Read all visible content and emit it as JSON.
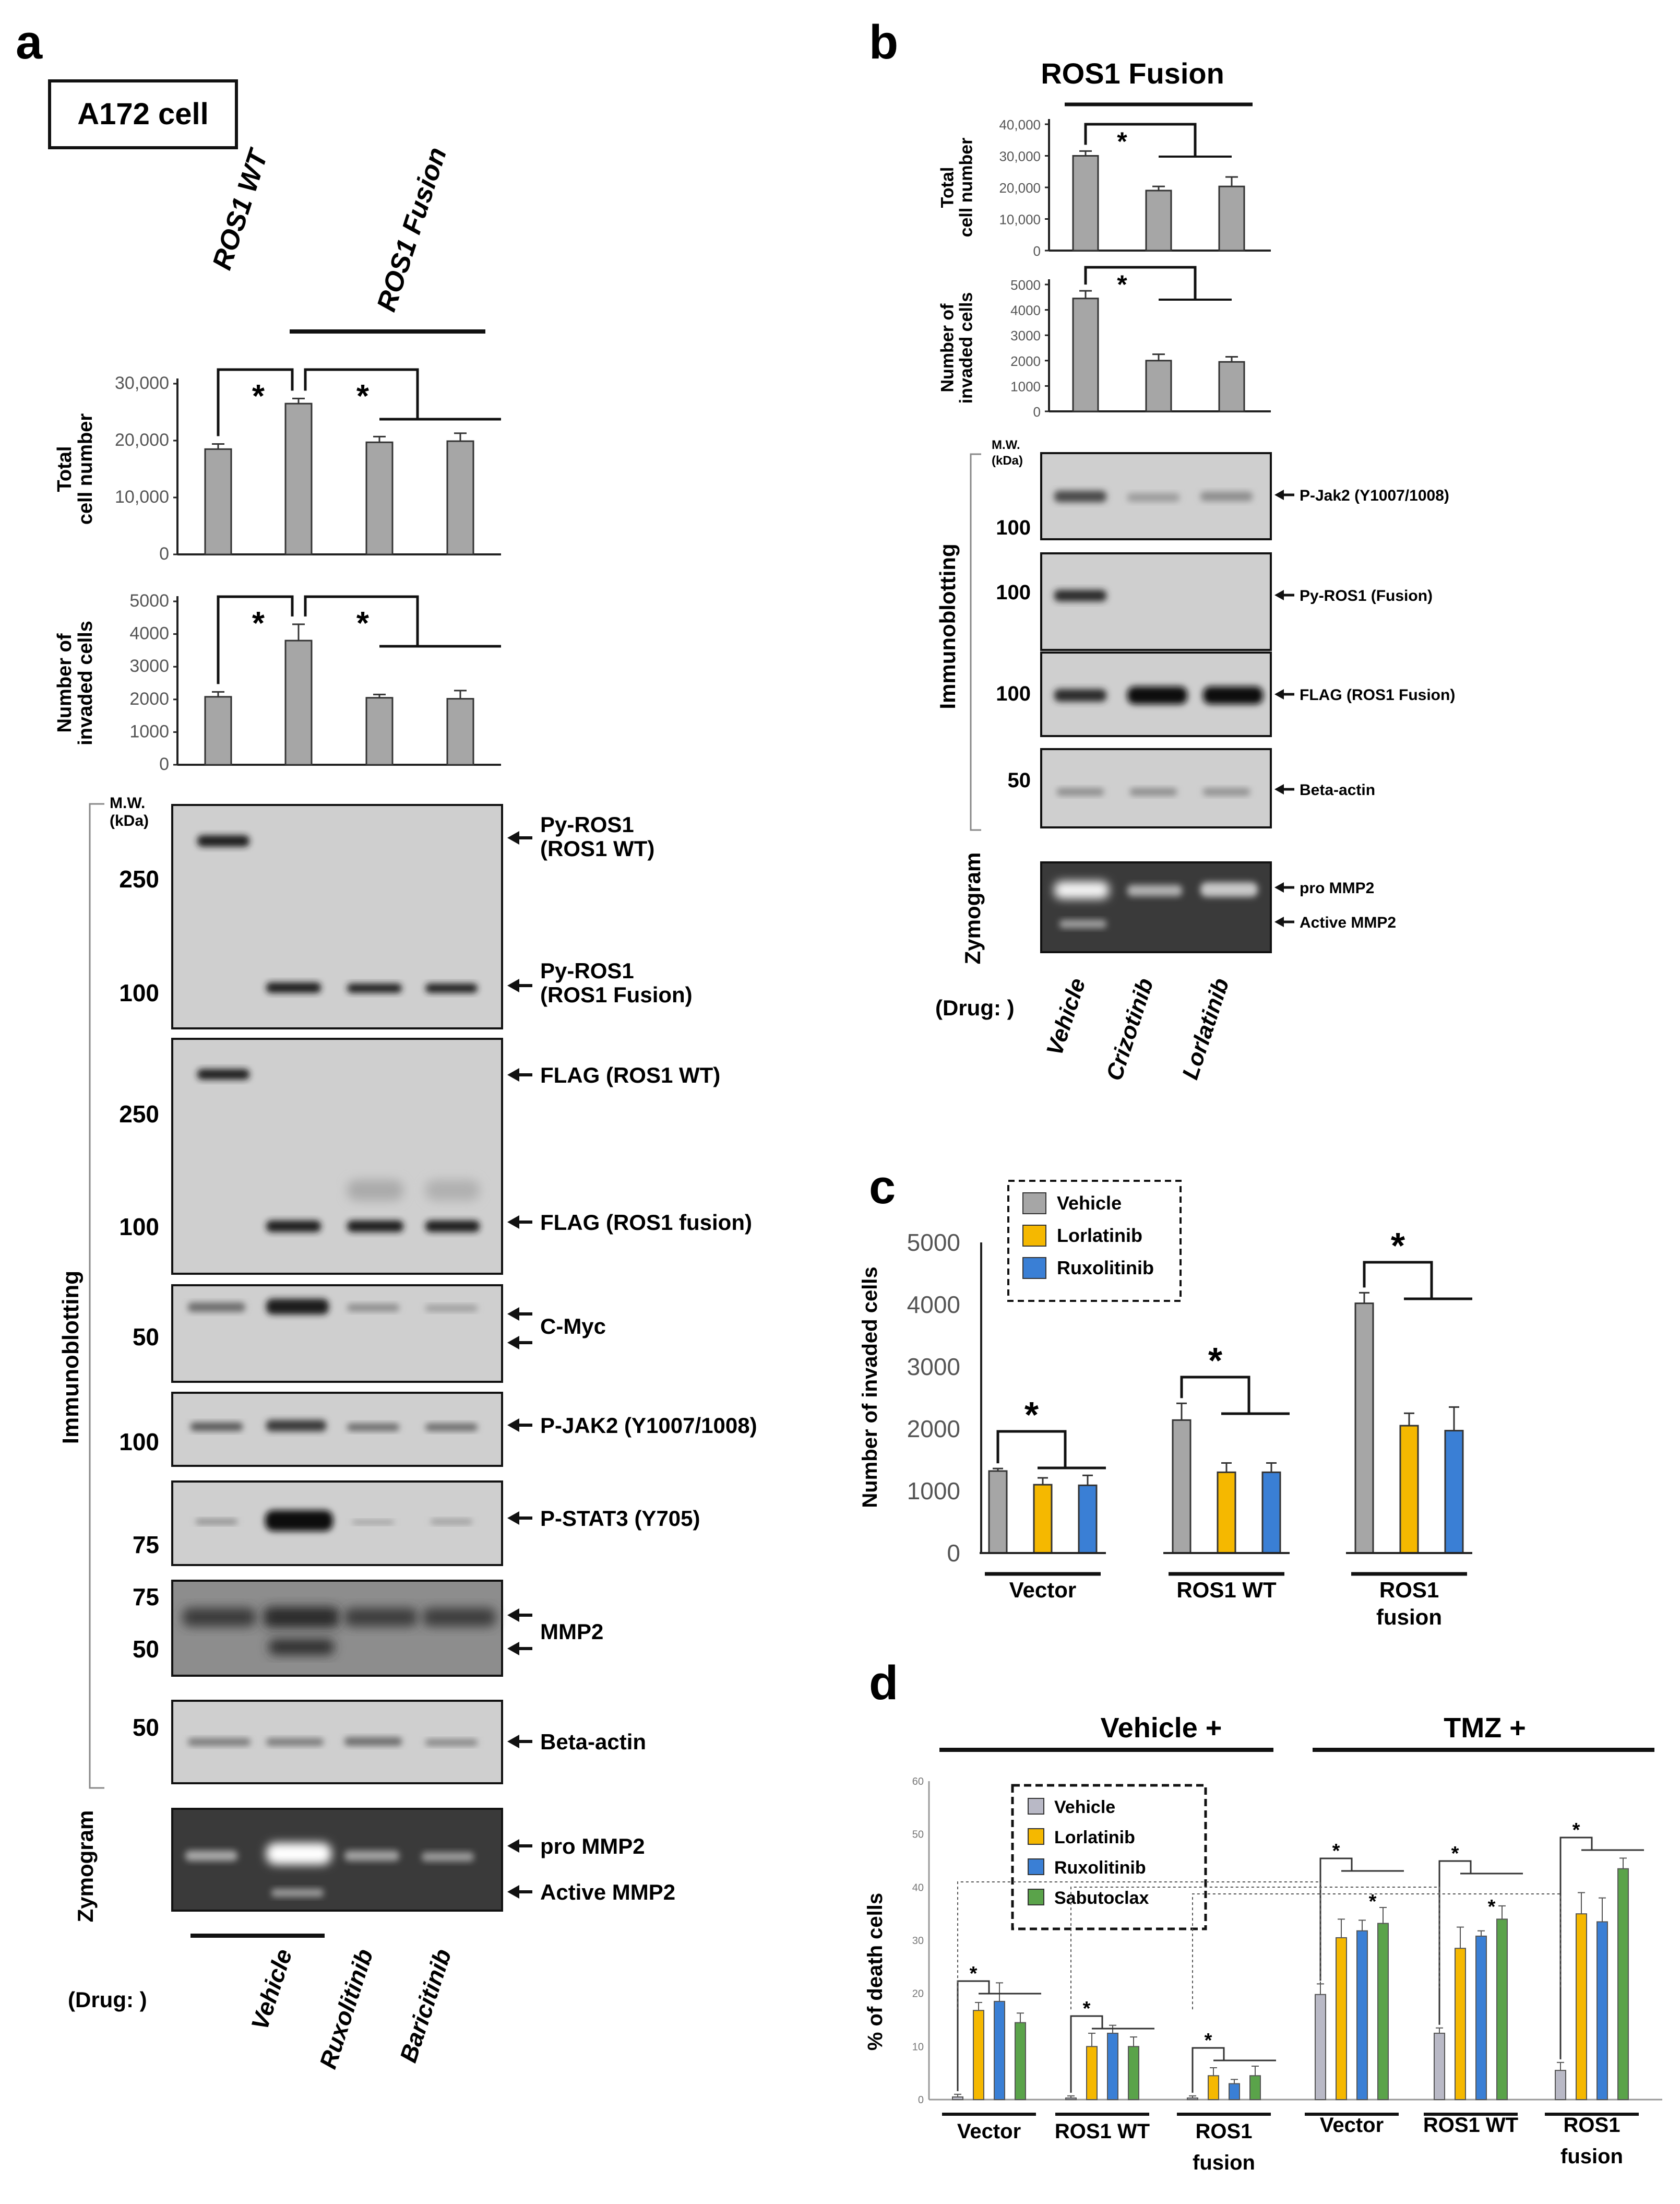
{
  "panels": [
    "a",
    "b",
    "c",
    "d"
  ],
  "panel_a": {
    "cell_label": "A172 cell",
    "group_wt": "ROS1 WT",
    "group_fusion": "ROS1 Fusion",
    "mw_header": "M.W.\n(kDa)",
    "section_immuno": "Immunoblotting",
    "section_zymo": "Zymogram",
    "drug_label": "(Drug: )",
    "drugs": [
      "Vehicle",
      "Ruxolitinib",
      "Baricitinib"
    ],
    "blots": [
      {
        "name": "py-ros1",
        "mw": [
          "250",
          "100"
        ],
        "labels": [
          "Py-ROS1\n(ROS1 WT)",
          "Py-ROS1\n(ROS1 Fusion)"
        ]
      },
      {
        "name": "flag",
        "mw": [
          "250",
          "100"
        ],
        "labels": [
          "FLAG (ROS1 WT)",
          "FLAG (ROS1 fusion)"
        ]
      },
      {
        "name": "c-myc",
        "mw": [
          "50"
        ],
        "labels": [
          "C-Myc"
        ]
      },
      {
        "name": "p-jak2",
        "mw": [
          "100"
        ],
        "labels": [
          "P-JAK2 (Y1007/1008)"
        ]
      },
      {
        "name": "p-stat3",
        "mw": [
          "75"
        ],
        "labels": [
          "P-STAT3 (Y705)"
        ]
      },
      {
        "name": "mmp2",
        "mw": [
          "75",
          "50"
        ],
        "labels": [
          "MMP2"
        ]
      },
      {
        "name": "beta-actin",
        "mw": [
          "50"
        ],
        "labels": [
          "Beta-actin"
        ]
      }
    ],
    "zymo_labels": [
      "pro MMP2",
      "Active MMP2"
    ]
  },
  "panel_b": {
    "title": "ROS1 Fusion",
    "mw_header": "M.W.\n(kDa)",
    "section_immuno": "Immunoblotting",
    "section_zymo": "Zymogram",
    "drug_label": "(Drug: )",
    "drugs": [
      "Vehicle",
      "Crizotinib",
      "Lorlatinib"
    ],
    "blots": [
      {
        "name": "p-jak2",
        "mw": [
          "100"
        ],
        "labels": [
          "P-Jak2 (Y1007/1008)"
        ]
      },
      {
        "name": "py-ros1",
        "mw": [
          "100"
        ],
        "labels": [
          "Py-ROS1 (Fusion)"
        ]
      },
      {
        "name": "flag",
        "mw": [
          "100"
        ],
        "labels": [
          "FLAG (ROS1 Fusion)"
        ]
      },
      {
        "name": "beta-actin",
        "mw": [
          "50"
        ],
        "labels": [
          "Beta-actin"
        ]
      }
    ],
    "zymo_labels": [
      "pro MMP2",
      "Active MMP2"
    ]
  },
  "chart_data": [
    {
      "id": "a-total",
      "type": "bar",
      "ylabel": "Total\ncell number",
      "ylim": [
        0,
        30000
      ],
      "yticks": [
        "0",
        "10,000",
        "20,000",
        "30,000"
      ],
      "values": [
        18500,
        26500,
        19700,
        19900
      ],
      "errors": [
        900,
        900,
        1000,
        1400
      ],
      "color": "#a6a6a6",
      "significance": [
        "*",
        "*"
      ]
    },
    {
      "id": "a-invaded",
      "type": "bar",
      "ylabel": "Number of\ninvaded cells",
      "ylim": [
        0,
        5000
      ],
      "yticks": [
        "0",
        "1000",
        "2000",
        "3000",
        "4000",
        "5000"
      ],
      "values": [
        2080,
        3800,
        2050,
        2020
      ],
      "errors": [
        150,
        500,
        100,
        250
      ],
      "color": "#a6a6a6",
      "significance": [
        "*",
        "*"
      ]
    },
    {
      "id": "b-total",
      "type": "bar",
      "ylabel": "Total\ncell number",
      "ylim": [
        0,
        40000
      ],
      "yticks": [
        "0",
        "10,000",
        "20,000",
        "30,000",
        "40,000"
      ],
      "values": [
        30000,
        19000,
        20300
      ],
      "errors": [
        1500,
        1300,
        3000
      ],
      "color": "#a6a6a6",
      "significance": [
        "*"
      ]
    },
    {
      "id": "b-invaded",
      "type": "bar",
      "ylabel": "Number of\ninvaded cells",
      "ylim": [
        0,
        5000
      ],
      "yticks": [
        "0",
        "1000",
        "2000",
        "3000",
        "4000",
        "5000"
      ],
      "values": [
        4450,
        2000,
        1950
      ],
      "errors": [
        300,
        250,
        200
      ],
      "color": "#a6a6a6",
      "significance": [
        "*"
      ]
    },
    {
      "id": "c",
      "type": "bar",
      "ylabel": "Number of invaded cells",
      "ylim": [
        0,
        5000
      ],
      "yticks": [
        "0",
        "1000",
        "2000",
        "3000",
        "4000",
        "5000"
      ],
      "categories": [
        "Vector",
        "ROS1 WT",
        "ROS1\nfusion"
      ],
      "series": [
        {
          "name": "Vehicle",
          "color": "#a6a6a6",
          "values": [
            1320,
            2140,
            4020
          ],
          "errors": [
            40,
            270,
            170
          ]
        },
        {
          "name": "Lorlatinib",
          "color": "#f5b800",
          "values": [
            1100,
            1300,
            2050
          ],
          "errors": [
            110,
            150,
            200
          ]
        },
        {
          "name": "Ruxolitinib",
          "color": "#3a7fd5",
          "values": [
            1090,
            1300,
            1970
          ],
          "errors": [
            160,
            150,
            380
          ]
        }
      ],
      "significance": [
        "*",
        "*",
        "*"
      ],
      "legend": "top-left"
    },
    {
      "id": "d",
      "type": "bar",
      "ylabel": "% of death cells",
      "ylim": [
        0,
        60
      ],
      "yticks": [
        "0",
        "10",
        "20",
        "30",
        "40",
        "50",
        "60"
      ],
      "groups": [
        "Vehicle +",
        "TMZ +"
      ],
      "categories": [
        "Vector",
        "ROS1 WT",
        "ROS1\nfusion",
        "Vector",
        "ROS1 WT",
        "ROS1\nfusion"
      ],
      "series": [
        {
          "name": "Vehicle",
          "color": "#b9b9c6",
          "values": [
            0.5,
            0.3,
            0.3,
            19.8,
            12.5,
            5.5
          ],
          "errors": [
            0.5,
            0.4,
            0.4,
            2.0,
            1.0,
            1.5
          ]
        },
        {
          "name": "Lorlatinib",
          "color": "#f5b800",
          "values": [
            16.8,
            10.0,
            4.5,
            30.5,
            28.5,
            35.0
          ],
          "errors": [
            1.5,
            2.5,
            1.5,
            3.5,
            4.0,
            4.0
          ]
        },
        {
          "name": "Ruxolitinib",
          "color": "#3a7fd5",
          "values": [
            18.5,
            12.5,
            3.0,
            31.8,
            30.8,
            33.5
          ],
          "errors": [
            3.5,
            1.5,
            0.8,
            2.0,
            1.0,
            4.5
          ]
        },
        {
          "name": "Sabutoclax",
          "color": "#5aa34a",
          "values": [
            14.5,
            10.0,
            4.5,
            33.2,
            34.0,
            43.5
          ],
          "errors": [
            1.8,
            1.8,
            1.8,
            3.0,
            2.5,
            2.0
          ]
        }
      ],
      "significance": [
        "*",
        "*",
        "*",
        "*",
        "*",
        "*",
        "*",
        "*"
      ],
      "legend": "top-left"
    }
  ]
}
